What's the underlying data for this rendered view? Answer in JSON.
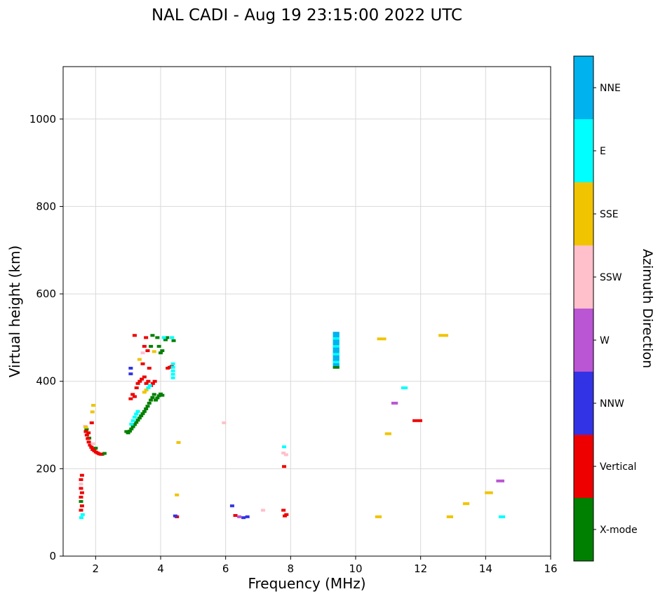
{
  "title": "NAL CADI - Aug 19 23:15:00 2022 UTC",
  "chart_data": {
    "type": "scatter",
    "title": "NAL CADI - Aug 19 23:15:00 2022 UTC",
    "xlabel": "Frequency (MHz)",
    "ylabel": "Virtual height (km)",
    "colorbar_label": "Azimuth Direction",
    "xlim": [
      1,
      16
    ],
    "ylim": [
      0,
      1120
    ],
    "x_ticks": [
      2,
      4,
      6,
      8,
      10,
      12,
      14,
      16
    ],
    "y_ticks": [
      0,
      200,
      400,
      600,
      800,
      1000
    ],
    "grid": true,
    "marker": "horizontal-dash",
    "legend_position": "right-colorbar",
    "colorbar": {
      "entries": [
        {
          "label": "NNE",
          "color": "#00B2EE"
        },
        {
          "label": "E",
          "color": "#00FFFF"
        },
        {
          "label": "SSE",
          "color": "#F0C400"
        },
        {
          "label": "SSW",
          "color": "#FFC0CB"
        },
        {
          "label": "W",
          "color": "#BA55D3"
        },
        {
          "label": "NNW",
          "color": "#3333E6"
        },
        {
          "label": "Vertical",
          "color": "#EE0000"
        },
        {
          "label": "X-mode",
          "color": "#008000"
        }
      ]
    },
    "series": [
      {
        "name": "X-mode",
        "color": "#008000",
        "points": [
          [
            1.55,
            125
          ],
          [
            1.72,
            290
          ],
          [
            1.8,
            270
          ],
          [
            2.0,
            247
          ],
          [
            2.2,
            233
          ],
          [
            2.27,
            235
          ],
          [
            2.95,
            285
          ],
          [
            3.0,
            282
          ],
          [
            3.05,
            286
          ],
          [
            3.1,
            291
          ],
          [
            3.15,
            296
          ],
          [
            3.2,
            301
          ],
          [
            3.25,
            306
          ],
          [
            3.3,
            311
          ],
          [
            3.35,
            316
          ],
          [
            3.4,
            321
          ],
          [
            3.45,
            326
          ],
          [
            3.5,
            331
          ],
          [
            3.55,
            337
          ],
          [
            3.6,
            343
          ],
          [
            3.65,
            350
          ],
          [
            3.7,
            357
          ],
          [
            3.75,
            363
          ],
          [
            3.8,
            370
          ],
          [
            3.85,
            357
          ],
          [
            3.9,
            362
          ],
          [
            3.95,
            367
          ],
          [
            4.0,
            371
          ],
          [
            4.05,
            368
          ],
          [
            3.7,
            480
          ],
          [
            3.75,
            505
          ],
          [
            3.9,
            500
          ],
          [
            3.95,
            480
          ],
          [
            4.0,
            465
          ],
          [
            4.05,
            470
          ],
          [
            4.15,
            495
          ],
          [
            4.2,
            500
          ],
          [
            4.4,
            493
          ],
          [
            9.4,
            432,
            0.2
          ]
        ]
      },
      {
        "name": "Vertical",
        "color": "#EE0000",
        "points": [
          [
            1.55,
            175
          ],
          [
            1.58,
            185
          ],
          [
            1.55,
            155
          ],
          [
            1.58,
            145
          ],
          [
            1.55,
            135
          ],
          [
            1.58,
            115
          ],
          [
            1.55,
            105
          ],
          [
            1.7,
            285
          ],
          [
            1.73,
            277
          ],
          [
            1.76,
            269
          ],
          [
            1.79,
            261
          ],
          [
            1.83,
            254
          ],
          [
            1.87,
            249
          ],
          [
            1.91,
            244
          ],
          [
            1.96,
            241
          ],
          [
            2.01,
            238
          ],
          [
            2.06,
            236
          ],
          [
            2.11,
            234
          ],
          [
            2.16,
            233
          ],
          [
            1.88,
            305
          ],
          [
            1.78,
            282
          ],
          [
            3.08,
            360
          ],
          [
            3.14,
            370
          ],
          [
            3.2,
            365
          ],
          [
            3.26,
            385
          ],
          [
            3.3,
            395
          ],
          [
            3.36,
            400
          ],
          [
            3.42,
            405
          ],
          [
            3.5,
            410
          ],
          [
            3.56,
            395
          ],
          [
            3.62,
            400
          ],
          [
            3.7,
            390
          ],
          [
            3.76,
            395
          ],
          [
            3.82,
            400
          ],
          [
            3.2,
            505
          ],
          [
            3.45,
            440
          ],
          [
            3.5,
            480
          ],
          [
            3.55,
            500
          ],
          [
            3.6,
            470
          ],
          [
            3.65,
            430
          ],
          [
            4.22,
            430
          ],
          [
            4.28,
            432
          ],
          [
            4.34,
            434
          ],
          [
            4.5,
            90
          ],
          [
            6.3,
            93
          ],
          [
            7.8,
            205
          ],
          [
            7.78,
            105
          ],
          [
            7.82,
            92
          ],
          [
            7.87,
            95
          ],
          [
            11.9,
            310,
            0.3
          ]
        ]
      },
      {
        "name": "NNW",
        "color": "#3333E6",
        "points": [
          [
            3.08,
            430
          ],
          [
            3.08,
            417
          ],
          [
            4.45,
            92
          ],
          [
            6.2,
            115
          ],
          [
            6.55,
            88
          ],
          [
            6.67,
            90
          ]
        ]
      },
      {
        "name": "W",
        "color": "#BA55D3",
        "points": [
          [
            6.42,
            90
          ],
          [
            11.2,
            350,
            0.2
          ],
          [
            14.45,
            172,
            0.25
          ]
        ]
      },
      {
        "name": "SSW",
        "color": "#FFC0CB",
        "points": [
          [
            1.55,
            165
          ],
          [
            1.68,
            297
          ],
          [
            1.92,
            257
          ],
          [
            3.45,
            465
          ],
          [
            5.95,
            305
          ],
          [
            7.15,
            105
          ],
          [
            7.78,
            236
          ],
          [
            7.86,
            232
          ]
        ]
      },
      {
        "name": "SSE",
        "color": "#F0C400",
        "points": [
          [
            1.7,
            295
          ],
          [
            1.9,
            330
          ],
          [
            1.93,
            345
          ],
          [
            3.35,
            450
          ],
          [
            3.5,
            375
          ],
          [
            3.56,
            380
          ],
          [
            3.8,
            468
          ],
          [
            4.55,
            260
          ],
          [
            4.5,
            140
          ],
          [
            10.8,
            497,
            0.28
          ],
          [
            10.7,
            90,
            0.2
          ],
          [
            11.0,
            280,
            0.2
          ],
          [
            12.7,
            505,
            0.3
          ],
          [
            12.9,
            90,
            0.2
          ],
          [
            13.4,
            120,
            0.2
          ],
          [
            14.1,
            145,
            0.25
          ]
        ]
      },
      {
        "name": "E",
        "color": "#00FFFF",
        "points": [
          [
            1.56,
            88
          ],
          [
            1.6,
            95
          ],
          [
            3.1,
            302
          ],
          [
            3.15,
            310
          ],
          [
            3.2,
            318
          ],
          [
            3.25,
            325
          ],
          [
            3.3,
            331
          ],
          [
            3.62,
            385
          ],
          [
            3.67,
            390
          ],
          [
            4.1,
            500
          ],
          [
            4.35,
            500
          ],
          [
            4.38,
            408
          ],
          [
            4.38,
            416
          ],
          [
            4.38,
            424
          ],
          [
            4.38,
            432
          ],
          [
            4.38,
            440
          ],
          [
            7.8,
            250
          ],
          [
            9.4,
            444,
            0.2
          ],
          [
            9.4,
            462,
            0.2
          ],
          [
            9.4,
            480,
            0.2
          ],
          [
            9.4,
            498,
            0.2
          ],
          [
            11.5,
            385,
            0.2
          ],
          [
            14.5,
            90,
            0.2
          ]
        ]
      },
      {
        "name": "NNE",
        "color": "#00B2EE",
        "points": [
          [
            9.4,
            438,
            0.2
          ],
          [
            9.4,
            450,
            0.2
          ],
          [
            9.4,
            456,
            0.2
          ],
          [
            9.4,
            468,
            0.2
          ],
          [
            9.4,
            474,
            0.2
          ],
          [
            9.4,
            486,
            0.2
          ],
          [
            9.4,
            492,
            0.2
          ],
          [
            9.4,
            504,
            0.2
          ],
          [
            9.4,
            510,
            0.2
          ]
        ]
      }
    ]
  }
}
